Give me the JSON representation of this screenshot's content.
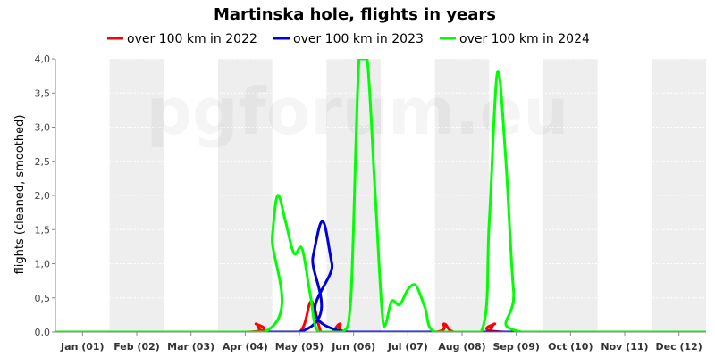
{
  "chart_data": {
    "type": "line",
    "title": "Martinska hole, flights in years",
    "ylabel": "flights (cleaned, smoothed)",
    "xlabel": "",
    "watermark": "pgforum.eu",
    "ylim": [
      0,
      4
    ],
    "xlim": [
      0,
      12
    ],
    "y_ticks": [
      "0,0",
      "0,5",
      "1,0",
      "1,5",
      "2,0",
      "2,5",
      "3,0",
      "3,5",
      "4,0"
    ],
    "y_tick_values": [
      0,
      0.5,
      1.0,
      1.5,
      2.0,
      2.5,
      3.0,
      3.5,
      4.0
    ],
    "categories": [
      "Jan (01)",
      "Feb (02)",
      "Mar (03)",
      "Apr (04)",
      "May (05)",
      "Jun (06)",
      "Jul (07)",
      "Aug (08)",
      "Sep (09)",
      "Oct (10)",
      "Nov (11)",
      "Dec (12)"
    ],
    "grid": true,
    "alternating_band_color": "#eeeeee",
    "legend_position": "top",
    "series": [
      {
        "name": "over 100 km in 2022",
        "color": "#ff0000",
        "points": [
          [
            0,
            0
          ],
          [
            3.55,
            0
          ],
          [
            3.7,
            0.12
          ],
          [
            3.85,
            0
          ],
          [
            4.5,
            0
          ],
          [
            4.72,
            0.45
          ],
          [
            4.9,
            0
          ],
          [
            5.1,
            0
          ],
          [
            5.25,
            0.12
          ],
          [
            5.4,
            0
          ],
          [
            7.0,
            0
          ],
          [
            7.17,
            0.12
          ],
          [
            7.35,
            0
          ],
          [
            7.95,
            0
          ],
          [
            8.1,
            0.12
          ],
          [
            8.28,
            0
          ],
          [
            12,
            0
          ]
        ]
      },
      {
        "name": "over 100 km in 2023",
        "color": "#0000dd",
        "points": [
          [
            0,
            0
          ],
          [
            4.5,
            0
          ],
          [
            4.75,
            1.1
          ],
          [
            4.93,
            1.62
          ],
          [
            5.1,
            1.0
          ],
          [
            5.35,
            0
          ],
          [
            12,
            0
          ]
        ]
      },
      {
        "name": "over 100 km in 2024",
        "color": "#00ff00",
        "points": [
          [
            0,
            0
          ],
          [
            3.85,
            0
          ],
          [
            4.0,
            1.4
          ],
          [
            4.1,
            2.0
          ],
          [
            4.25,
            1.6
          ],
          [
            4.4,
            1.15
          ],
          [
            4.55,
            1.22
          ],
          [
            4.7,
            0.55
          ],
          [
            4.85,
            0
          ],
          [
            5.3,
            0
          ],
          [
            5.45,
            0.5
          ],
          [
            5.6,
            4.0
          ],
          [
            5.75,
            4.0
          ],
          [
            5.9,
            2.0
          ],
          [
            6.05,
            0.1
          ],
          [
            6.2,
            0.45
          ],
          [
            6.35,
            0.4
          ],
          [
            6.5,
            0.62
          ],
          [
            6.65,
            0.68
          ],
          [
            6.82,
            0.35
          ],
          [
            7.0,
            0
          ],
          [
            7.85,
            0
          ],
          [
            8.0,
            1.6
          ],
          [
            8.15,
            3.8
          ],
          [
            8.3,
            2.6
          ],
          [
            8.45,
            0.6
          ],
          [
            8.6,
            0
          ],
          [
            12,
            0
          ]
        ]
      }
    ]
  }
}
